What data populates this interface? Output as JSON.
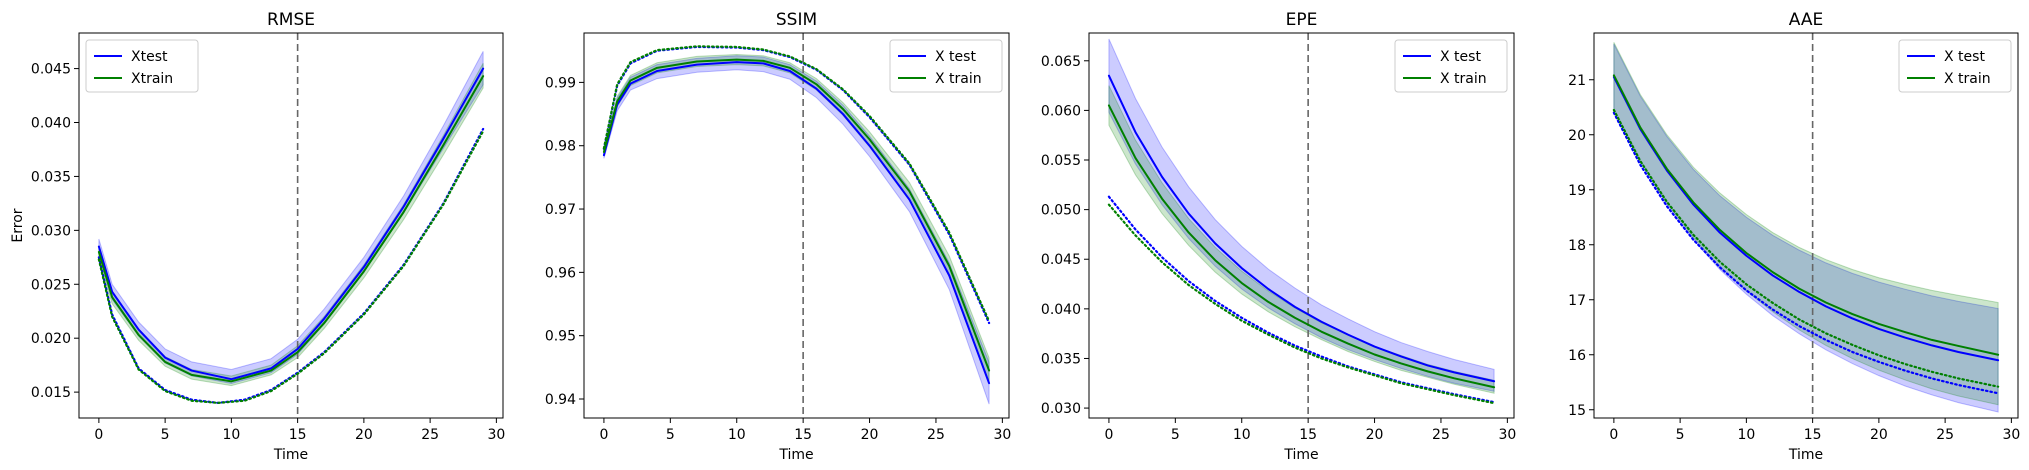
{
  "colors": {
    "test": "#0000ff",
    "train": "#008000",
    "vline": "#666666"
  },
  "chart_data": [
    {
      "type": "line",
      "title": "RMSE",
      "xlabel": "Time",
      "ylabel": "Error",
      "xlim": [
        -1.5,
        30.5
      ],
      "ylim": [
        0.0126,
        0.0483
      ],
      "xticks": [
        "0",
        "5",
        "10",
        "15",
        "20",
        "25",
        "30"
      ],
      "yticks": [
        "0.015",
        "0.020",
        "0.025",
        "0.030",
        "0.035",
        "0.040",
        "0.045"
      ],
      "vline_x": 15,
      "legend_loc": "upper-left",
      "legend": [
        "Xtest",
        "Xtrain"
      ],
      "series": [
        {
          "name": "Xtest",
          "color": "test",
          "style": "solid",
          "x": [
            0,
            1,
            3,
            5,
            7,
            10,
            13,
            15,
            17,
            20,
            23,
            26,
            29
          ],
          "y": [
            0.0285,
            0.0243,
            0.0208,
            0.0182,
            0.017,
            0.0162,
            0.0172,
            0.019,
            0.0218,
            0.0266,
            0.0322,
            0.0385,
            0.045
          ],
          "band_low": [
            0.0278,
            0.0236,
            0.0202,
            0.0177,
            0.0165,
            0.0158,
            0.0168,
            0.0185,
            0.0213,
            0.0261,
            0.0316,
            0.0376,
            0.0435
          ],
          "band_high": [
            0.0292,
            0.025,
            0.0215,
            0.019,
            0.0178,
            0.0171,
            0.0181,
            0.0199,
            0.0227,
            0.0275,
            0.0332,
            0.0397,
            0.0466
          ]
        },
        {
          "name": "Xtrain",
          "color": "train",
          "style": "solid",
          "x": [
            0,
            1,
            3,
            5,
            7,
            10,
            13,
            15,
            17,
            20,
            23,
            26,
            29
          ],
          "y": [
            0.028,
            0.0238,
            0.0203,
            0.0178,
            0.0166,
            0.016,
            0.017,
            0.0187,
            0.0214,
            0.0262,
            0.0317,
            0.0379,
            0.0443
          ],
          "band_low": [
            0.0274,
            0.0232,
            0.0198,
            0.0174,
            0.0162,
            0.0156,
            0.0166,
            0.0182,
            0.0209,
            0.0256,
            0.031,
            0.037,
            0.0432
          ],
          "band_high": [
            0.0286,
            0.0244,
            0.0208,
            0.0183,
            0.0171,
            0.0165,
            0.0175,
            0.0193,
            0.022,
            0.0268,
            0.0324,
            0.0388,
            0.0455
          ]
        },
        {
          "name": "",
          "color": "test",
          "style": "dotted",
          "x": [
            0,
            1,
            3,
            5,
            7,
            9,
            11,
            13,
            15,
            17,
            20,
            23,
            26,
            29
          ],
          "y": [
            0.0275,
            0.0222,
            0.0172,
            0.0152,
            0.0143,
            0.014,
            0.0143,
            0.0152,
            0.0168,
            0.0187,
            0.0223,
            0.0268,
            0.0325,
            0.0394
          ]
        },
        {
          "name": "",
          "color": "train",
          "style": "dotted",
          "x": [
            0,
            1,
            3,
            5,
            7,
            9,
            11,
            13,
            15,
            17,
            20,
            23,
            26,
            29
          ],
          "y": [
            0.0273,
            0.022,
            0.0171,
            0.0151,
            0.0142,
            0.014,
            0.0142,
            0.0151,
            0.0167,
            0.0186,
            0.0222,
            0.0267,
            0.0324,
            0.0392
          ]
        }
      ]
    },
    {
      "type": "line",
      "title": "SSIM",
      "xlabel": "Time",
      "ylabel": "",
      "xlim": [
        -1.5,
        30.5
      ],
      "ylim": [
        0.937,
        0.9978
      ],
      "xticks": [
        "0",
        "5",
        "10",
        "15",
        "20",
        "25",
        "30"
      ],
      "yticks": [
        "0.94",
        "0.95",
        "0.96",
        "0.97",
        "0.98",
        "0.99"
      ],
      "vline_x": 15,
      "legend_loc": "upper-right",
      "legend": [
        "X test",
        "X train"
      ],
      "series": [
        {
          "name": "X test",
          "color": "test",
          "style": "solid",
          "x": [
            0,
            1,
            2,
            4,
            7,
            10,
            12,
            14,
            16,
            18,
            20,
            23,
            26,
            29
          ],
          "y": [
            0.9785,
            0.9865,
            0.9898,
            0.9918,
            0.9928,
            0.9932,
            0.993,
            0.9918,
            0.989,
            0.985,
            0.98,
            0.9715,
            0.9595,
            0.9425
          ],
          "band_low": [
            0.978,
            0.9855,
            0.9888,
            0.9906,
            0.9916,
            0.992,
            0.9917,
            0.9905,
            0.9876,
            0.9834,
            0.9783,
            0.9696,
            0.9573,
            0.9392
          ],
          "band_high": [
            0.979,
            0.9875,
            0.9908,
            0.9928,
            0.9938,
            0.9942,
            0.994,
            0.9928,
            0.9902,
            0.9864,
            0.9815,
            0.9732,
            0.9615,
            0.9458
          ]
        },
        {
          "name": "X train",
          "color": "train",
          "style": "solid",
          "x": [
            0,
            1,
            2,
            4,
            7,
            10,
            12,
            14,
            16,
            18,
            20,
            23,
            26,
            29
          ],
          "y": [
            0.979,
            0.987,
            0.9903,
            0.9923,
            0.9933,
            0.9936,
            0.9934,
            0.9923,
            0.9897,
            0.9858,
            0.981,
            0.9728,
            0.961,
            0.9445
          ],
          "band_low": [
            0.9785,
            0.9862,
            0.9895,
            0.9915,
            0.9925,
            0.9928,
            0.9926,
            0.9915,
            0.9888,
            0.9848,
            0.9798,
            0.9714,
            0.9594,
            0.9425
          ],
          "band_high": [
            0.9795,
            0.9878,
            0.9911,
            0.9931,
            0.9941,
            0.9944,
            0.9942,
            0.9931,
            0.9906,
            0.9868,
            0.9822,
            0.9742,
            0.9626,
            0.9465
          ]
        },
        {
          "name": "",
          "color": "test",
          "style": "dotted",
          "x": [
            0,
            1,
            2,
            4,
            7,
            10,
            12,
            14,
            16,
            18,
            20,
            23,
            26,
            29
          ],
          "y": [
            0.9795,
            0.9895,
            0.993,
            0.995,
            0.9956,
            0.9955,
            0.9951,
            0.994,
            0.992,
            0.9888,
            0.9845,
            0.977,
            0.966,
            0.952
          ]
        },
        {
          "name": "",
          "color": "train",
          "style": "dotted",
          "x": [
            0,
            1,
            2,
            4,
            7,
            10,
            12,
            14,
            16,
            18,
            20,
            23,
            26,
            29
          ],
          "y": [
            0.9796,
            0.9897,
            0.9932,
            0.9951,
            0.9957,
            0.9956,
            0.9952,
            0.9941,
            0.9921,
            0.9889,
            0.9847,
            0.9772,
            0.9663,
            0.9523
          ]
        }
      ]
    },
    {
      "type": "line",
      "title": "EPE",
      "xlabel": "Time",
      "ylabel": "",
      "xlim": [
        -1.5,
        30.5
      ],
      "ylim": [
        0.029,
        0.0678
      ],
      "xticks": [
        "0",
        "5",
        "10",
        "15",
        "20",
        "25",
        "30"
      ],
      "yticks": [
        "0.030",
        "0.035",
        "0.040",
        "0.045",
        "0.050",
        "0.055",
        "0.060",
        "0.065"
      ],
      "vline_x": 15,
      "legend_loc": "upper-right",
      "legend": [
        "X test",
        "X train"
      ],
      "series": [
        {
          "name": "X test",
          "color": "test",
          "style": "solid",
          "x": [
            0,
            2,
            4,
            6,
            8,
            10,
            12,
            14,
            16,
            18,
            20,
            22,
            24,
            26,
            29
          ],
          "y": [
            0.0635,
            0.0578,
            0.0533,
            0.0496,
            0.0466,
            0.0441,
            0.042,
            0.0402,
            0.0387,
            0.0374,
            0.0362,
            0.0352,
            0.0343,
            0.0336,
            0.0327
          ],
          "band_low": [
            0.0598,
            0.0546,
            0.0505,
            0.0471,
            0.0443,
            0.042,
            0.0401,
            0.0385,
            0.0371,
            0.0359,
            0.0349,
            0.034,
            0.0332,
            0.0325,
            0.0317
          ],
          "band_high": [
            0.0672,
            0.0612,
            0.0563,
            0.0523,
            0.049,
            0.0463,
            0.044,
            0.0421,
            0.0404,
            0.039,
            0.0377,
            0.0366,
            0.0357,
            0.0349,
            0.0339
          ]
        },
        {
          "name": "X train",
          "color": "train",
          "style": "solid",
          "x": [
            0,
            2,
            4,
            6,
            8,
            10,
            12,
            14,
            16,
            18,
            20,
            22,
            24,
            26,
            29
          ],
          "y": [
            0.0605,
            0.0552,
            0.0511,
            0.0477,
            0.0449,
            0.0426,
            0.0407,
            0.0391,
            0.0377,
            0.0365,
            0.0354,
            0.0345,
            0.0337,
            0.033,
            0.0321
          ],
          "band_low": [
            0.0585,
            0.0535,
            0.0496,
            0.0464,
            0.0437,
            0.0415,
            0.0397,
            0.0382,
            0.0369,
            0.0357,
            0.0347,
            0.0338,
            0.0331,
            0.0324,
            0.0315
          ],
          "band_high": [
            0.0625,
            0.057,
            0.0527,
            0.0491,
            0.0462,
            0.0438,
            0.0418,
            0.0401,
            0.0386,
            0.0374,
            0.0362,
            0.0353,
            0.0344,
            0.0337,
            0.0328
          ]
        },
        {
          "name": "",
          "color": "test",
          "style": "dotted",
          "x": [
            0,
            2,
            4,
            6,
            8,
            10,
            12,
            14,
            16,
            18,
            20,
            22,
            24,
            26,
            29
          ],
          "y": [
            0.0513,
            0.048,
            0.0452,
            0.0428,
            0.0408,
            0.0391,
            0.0376,
            0.0363,
            0.0352,
            0.0342,
            0.0334,
            0.0326,
            0.032,
            0.0314,
            0.0306
          ]
        },
        {
          "name": "",
          "color": "train",
          "style": "dotted",
          "x": [
            0,
            2,
            4,
            6,
            8,
            10,
            12,
            14,
            16,
            18,
            20,
            22,
            24,
            26,
            29
          ],
          "y": [
            0.0505,
            0.0474,
            0.0447,
            0.0424,
            0.0405,
            0.0388,
            0.0374,
            0.0361,
            0.035,
            0.0341,
            0.0333,
            0.0325,
            0.0319,
            0.0313,
            0.0305
          ]
        }
      ]
    },
    {
      "type": "line",
      "title": "AAE",
      "xlabel": "Time",
      "ylabel": "",
      "xlim": [
        -1.5,
        30.5
      ],
      "ylim": [
        14.85,
        21.85
      ],
      "xticks": [
        "0",
        "5",
        "10",
        "15",
        "20",
        "25",
        "30"
      ],
      "yticks": [
        "15",
        "16",
        "17",
        "18",
        "19",
        "20",
        "21"
      ],
      "vline_x": 15,
      "legend_loc": "upper-right",
      "legend": [
        "X test",
        "X train"
      ],
      "series": [
        {
          "name": "X test",
          "color": "test",
          "style": "solid",
          "x": [
            0,
            2,
            4,
            6,
            8,
            10,
            12,
            14,
            16,
            18,
            20,
            22,
            24,
            26,
            29
          ],
          "y": [
            21.05,
            20.1,
            19.35,
            18.73,
            18.22,
            17.8,
            17.44,
            17.14,
            16.88,
            16.66,
            16.47,
            16.31,
            16.17,
            16.05,
            15.9
          ],
          "band_low": [
            20.45,
            19.5,
            18.73,
            18.09,
            17.55,
            17.1,
            16.71,
            16.38,
            16.09,
            15.84,
            15.62,
            15.43,
            15.27,
            15.13,
            14.96
          ],
          "band_high": [
            21.65,
            20.7,
            19.97,
            19.37,
            18.89,
            18.5,
            18.17,
            17.9,
            17.67,
            17.48,
            17.32,
            17.19,
            17.07,
            16.97,
            16.84
          ]
        },
        {
          "name": "X train",
          "color": "train",
          "style": "solid",
          "x": [
            0,
            2,
            4,
            6,
            8,
            10,
            12,
            14,
            16,
            18,
            20,
            22,
            24,
            26,
            29
          ],
          "y": [
            21.08,
            20.13,
            19.38,
            18.77,
            18.27,
            17.85,
            17.5,
            17.2,
            16.95,
            16.74,
            16.56,
            16.41,
            16.27,
            16.16,
            16.0
          ],
          "band_low": [
            20.48,
            19.53,
            18.76,
            18.13,
            17.6,
            17.16,
            16.78,
            16.45,
            16.17,
            15.93,
            15.72,
            15.54,
            15.38,
            15.25,
            15.09
          ],
          "band_high": [
            21.68,
            20.73,
            20.0,
            19.41,
            18.94,
            18.55,
            18.22,
            17.95,
            17.73,
            17.55,
            17.4,
            17.28,
            17.17,
            17.08,
            16.95
          ]
        },
        {
          "name": "",
          "color": "test",
          "style": "dotted",
          "x": [
            0,
            2,
            4,
            6,
            8,
            10,
            12,
            14,
            16,
            18,
            20,
            22,
            24,
            26,
            29
          ],
          "y": [
            20.4,
            19.45,
            18.7,
            18.09,
            17.59,
            17.17,
            16.82,
            16.52,
            16.27,
            16.05,
            15.87,
            15.71,
            15.57,
            15.45,
            15.3
          ]
        },
        {
          "name": "",
          "color": "train",
          "style": "dotted",
          "x": [
            0,
            2,
            4,
            6,
            8,
            10,
            12,
            14,
            16,
            18,
            20,
            22,
            24,
            26,
            29
          ],
          "y": [
            20.45,
            19.52,
            18.78,
            18.18,
            17.69,
            17.28,
            16.94,
            16.64,
            16.39,
            16.18,
            15.99,
            15.83,
            15.69,
            15.57,
            15.42
          ]
        }
      ]
    }
  ]
}
